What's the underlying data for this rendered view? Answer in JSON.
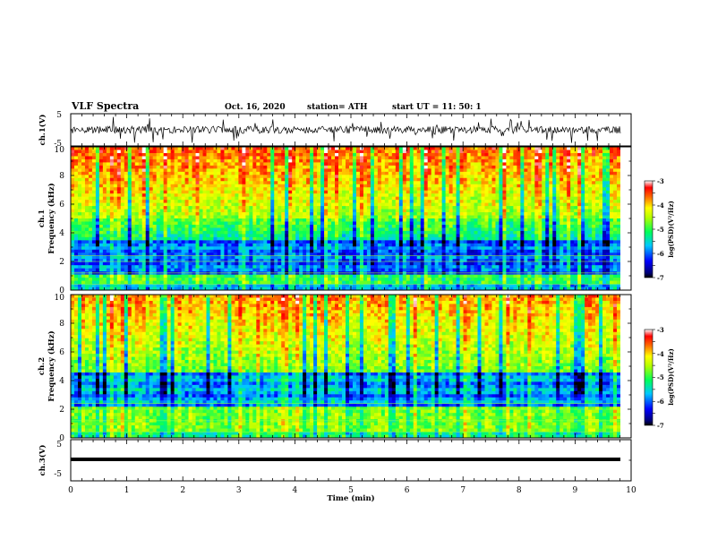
{
  "header": {
    "title": "VLF Spectra",
    "date": "Oct. 16, 2020",
    "station": "station= ATH",
    "start": "start  UT =  11: 50: 1"
  },
  "chart_data": [
    {
      "type": "line",
      "panel": "ch1-waveform",
      "ylabel": "ch.1(V)",
      "ylim": [
        -5,
        5
      ],
      "y_tick_labels": [
        "5",
        "-5"
      ],
      "xlim": [
        0,
        10
      ]
    },
    {
      "type": "heatmap",
      "panel": "ch1-spectrogram",
      "ylabel_line1": "ch.1",
      "ylabel_line2": "Frequency  (kHz)",
      "ylim": [
        0,
        10
      ],
      "y_tick_labels": [
        "0",
        "2",
        "4",
        "6",
        "8",
        "10"
      ],
      "xlim": [
        0,
        10
      ],
      "colorbar": {
        "label": "log(PSD)(V²/Hz)",
        "range": [
          -7,
          -3
        ],
        "tick_labels": [
          "-3",
          "-4",
          "-5",
          "-6",
          "-7"
        ]
      }
    },
    {
      "type": "heatmap",
      "panel": "ch2-spectrogram",
      "ylabel_line1": "ch.2",
      "ylabel_line2": "Frequency  (kHz)",
      "ylim": [
        0,
        10
      ],
      "y_tick_labels": [
        "0",
        "2",
        "4",
        "6",
        "8",
        "10"
      ],
      "xlim": [
        0,
        10
      ],
      "colorbar": {
        "label": "log(PSD)(V²/Hz)",
        "range": [
          -7,
          -3
        ],
        "tick_labels": [
          "-3",
          "-4",
          "-5",
          "-6",
          "-7"
        ]
      }
    },
    {
      "type": "line",
      "panel": "ch3-waveform",
      "ylabel": "ch.3(V)",
      "ylim": [
        -5,
        5
      ],
      "y_tick_labels": [
        "5",
        "-5"
      ],
      "xlim": [
        0,
        10
      ],
      "xlabel": "Time  (min)",
      "x_tick_labels": [
        "0",
        "1",
        "2",
        "3",
        "4",
        "5",
        "6",
        "7",
        "8",
        "9",
        "10"
      ]
    }
  ]
}
